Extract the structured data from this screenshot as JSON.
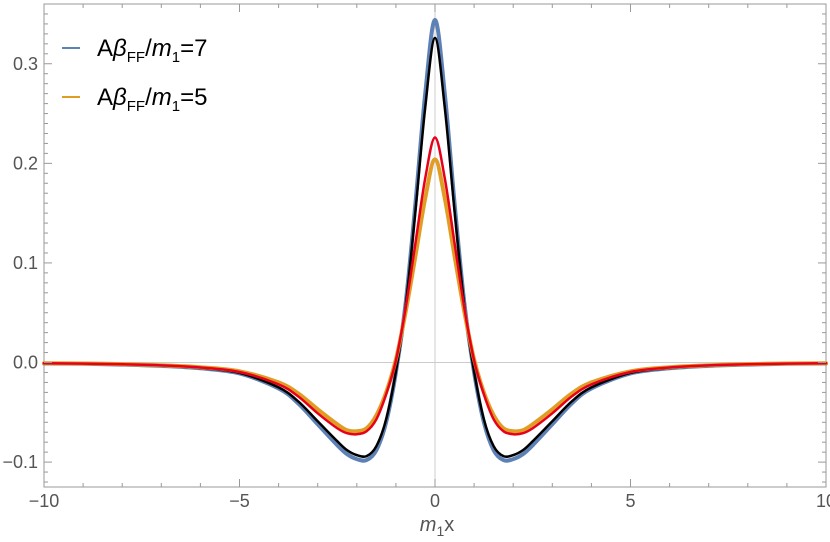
{
  "chart_data": {
    "type": "line",
    "x_axis": {
      "label_var": "m",
      "label_sub": "1",
      "label_suffix": "x",
      "range": [
        -10,
        10
      ],
      "ticks": [
        {
          "value": -10,
          "label": "−10"
        },
        {
          "value": -5,
          "label": "−5"
        },
        {
          "value": 0,
          "label": "0"
        },
        {
          "value": 5,
          "label": "5"
        },
        {
          "value": 10,
          "label": "10"
        }
      ]
    },
    "y_axis": {
      "range": [
        -0.125,
        0.36
      ],
      "ticks": [
        {
          "value": -0.1,
          "label": "−0.1"
        },
        {
          "value": 0.0,
          "label": "0.0"
        },
        {
          "value": 0.1,
          "label": "0.1"
        },
        {
          "value": 0.2,
          "label": "0.2"
        },
        {
          "value": 0.3,
          "label": "0.3"
        }
      ]
    },
    "grid": false,
    "legend_position": "top-left",
    "legend": [
      {
        "prefix": "A",
        "greek": "β",
        "sub": "FF",
        "slash": "/",
        "var": "m",
        "var_sub": "1",
        "suffix": "=7",
        "color": "#5E81B5"
      },
      {
        "prefix": "A",
        "greek": "β",
        "sub": "FF",
        "slash": "/",
        "var": "m",
        "var_sub": "1",
        "suffix": "=5",
        "color": "#E19C24"
      }
    ],
    "series": [
      {
        "color": "#5E81B5",
        "width": 4,
        "x": [
          -10,
          -9,
          -8,
          -7,
          -6,
          -5,
          -4,
          -3.5,
          -3,
          -2.5,
          -2.25,
          -2,
          -1.75,
          -1.5,
          -1.25,
          -1,
          -0.75,
          -0.5,
          -0.25,
          0,
          0.25,
          0.5,
          0.75,
          1,
          1.25,
          1.5,
          1.75,
          2,
          2.25,
          2.5,
          3,
          3.5,
          4,
          5,
          6,
          7,
          8,
          9,
          10
        ],
        "y": [
          -0.001,
          -0.0013,
          -0.0021,
          -0.0034,
          -0.0058,
          -0.011,
          -0.026,
          -0.041,
          -0.062,
          -0.083,
          -0.092,
          -0.097,
          -0.098,
          -0.088,
          -0.06,
          -0.01,
          0.06,
          0.16,
          0.27,
          0.344,
          0.27,
          0.16,
          0.06,
          -0.01,
          -0.06,
          -0.088,
          -0.098,
          -0.097,
          -0.092,
          -0.083,
          -0.062,
          -0.041,
          -0.026,
          -0.011,
          -0.0058,
          -0.0034,
          -0.0021,
          -0.0013,
          -0.001
        ]
      },
      {
        "color": "#000000",
        "width": 2.5,
        "x": [
          -10,
          -9,
          -8,
          -7,
          -6,
          -5,
          -4,
          -3.5,
          -3,
          -2.5,
          -2.25,
          -2,
          -1.75,
          -1.5,
          -1.25,
          -1,
          -0.75,
          -0.5,
          -0.25,
          0,
          0.25,
          0.5,
          0.75,
          1,
          1.25,
          1.5,
          1.75,
          2,
          2.25,
          2.5,
          3,
          3.5,
          4,
          5,
          6,
          7,
          8,
          9,
          10
        ],
        "y": [
          -0.001,
          -0.0013,
          -0.002,
          -0.0033,
          -0.0056,
          -0.0105,
          -0.025,
          -0.039,
          -0.059,
          -0.079,
          -0.088,
          -0.093,
          -0.094,
          -0.084,
          -0.057,
          -0.009,
          0.057,
          0.152,
          0.256,
          0.326,
          0.256,
          0.152,
          0.057,
          -0.009,
          -0.057,
          -0.084,
          -0.094,
          -0.093,
          -0.088,
          -0.079,
          -0.059,
          -0.039,
          -0.025,
          -0.0105,
          -0.0056,
          -0.0033,
          -0.002,
          -0.0013,
          -0.001
        ]
      },
      {
        "color": "#E19C24",
        "width": 4,
        "x": [
          -10,
          -9,
          -8,
          -7,
          -6,
          -5,
          -4,
          -3.5,
          -3,
          -2.5,
          -2.25,
          -2,
          -1.75,
          -1.5,
          -1.25,
          -1,
          -0.75,
          -0.5,
          -0.25,
          0,
          0.25,
          0.5,
          0.75,
          1,
          1.25,
          1.5,
          1.75,
          2,
          2.25,
          2.5,
          3,
          3.5,
          4,
          5,
          6,
          7,
          8,
          9,
          10
        ],
        "y": [
          -0.0007,
          -0.001,
          -0.0016,
          -0.0027,
          -0.0047,
          -0.0088,
          -0.02,
          -0.031,
          -0.047,
          -0.062,
          -0.068,
          -0.069,
          -0.066,
          -0.053,
          -0.03,
          0.003,
          0.051,
          0.107,
          0.165,
          0.204,
          0.165,
          0.107,
          0.051,
          0.003,
          -0.03,
          -0.053,
          -0.066,
          -0.069,
          -0.068,
          -0.062,
          -0.047,
          -0.031,
          -0.02,
          -0.0088,
          -0.0047,
          -0.0027,
          -0.0016,
          -0.001,
          -0.0007
        ]
      },
      {
        "color": "#E8001B",
        "width": 2.5,
        "x": [
          -10,
          -9,
          -8,
          -7,
          -6,
          -5,
          -4,
          -3.5,
          -3,
          -2.5,
          -2.25,
          -2,
          -1.75,
          -1.5,
          -1.25,
          -1,
          -0.75,
          -0.5,
          -0.25,
          0,
          0.25,
          0.5,
          0.75,
          1,
          1.25,
          1.5,
          1.75,
          2,
          2.25,
          2.5,
          3,
          3.5,
          4,
          5,
          6,
          7,
          8,
          9,
          10
        ],
        "y": [
          -0.0008,
          -0.0011,
          -0.0018,
          -0.0029,
          -0.005,
          -0.0095,
          -0.022,
          -0.034,
          -0.051,
          -0.066,
          -0.071,
          -0.072,
          -0.069,
          -0.057,
          -0.032,
          0.002,
          0.055,
          0.12,
          0.185,
          0.226,
          0.185,
          0.12,
          0.055,
          0.002,
          -0.032,
          -0.057,
          -0.069,
          -0.072,
          -0.071,
          -0.066,
          -0.051,
          -0.034,
          -0.022,
          -0.0095,
          -0.005,
          -0.0029,
          -0.0018,
          -0.0011,
          -0.0008
        ]
      }
    ]
  }
}
